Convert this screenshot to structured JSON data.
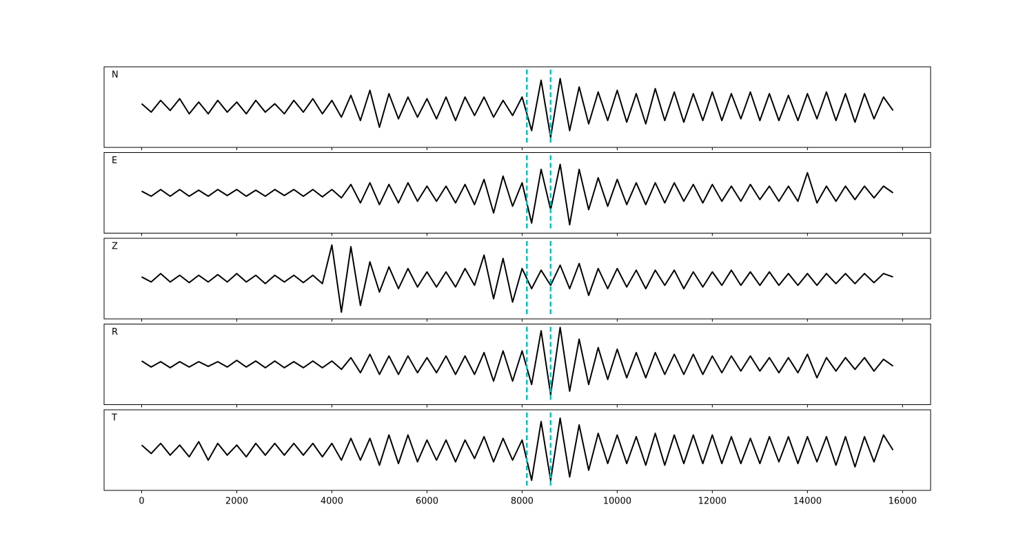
{
  "chart_data": {
    "type": "line",
    "x": [
      0,
      200,
      400,
      600,
      800,
      1000,
      1200,
      1400,
      1600,
      1800,
      2000,
      2200,
      2400,
      2600,
      2800,
      3000,
      3200,
      3400,
      3600,
      3800,
      4000,
      4200,
      4400,
      4600,
      4800,
      5000,
      5200,
      5400,
      5600,
      5800,
      6000,
      6200,
      6400,
      6600,
      6800,
      7000,
      7200,
      7400,
      7600,
      7800,
      8000,
      8200,
      8400,
      8600,
      8800,
      9000,
      9200,
      9400,
      9600,
      9800,
      10000,
      10200,
      10400,
      10600,
      10800,
      11000,
      11200,
      11400,
      11600,
      11800,
      12000,
      12200,
      12400,
      12600,
      12800,
      13000,
      13200,
      13400,
      13600,
      13800,
      14000,
      14200,
      14400,
      14600,
      14800,
      15000,
      15200,
      15400,
      15600,
      15800
    ],
    "xlim": [
      -790,
      16590
    ],
    "xticks": [
      0,
      2000,
      4000,
      6000,
      8000,
      10000,
      12000,
      14000,
      16000
    ],
    "ylim": [
      -1.2,
      1.2
    ],
    "vlines": [
      8100,
      8600
    ],
    "vline_color": "#00bfbf",
    "series": [
      {
        "name": "N",
        "color": "#000000",
        "values": [
          0.1,
          -0.15,
          0.2,
          -0.1,
          0.25,
          -0.2,
          0.15,
          -0.2,
          0.2,
          -0.15,
          0.15,
          -0.2,
          0.2,
          -0.15,
          0.1,
          -0.2,
          0.2,
          -0.15,
          0.25,
          -0.2,
          0.2,
          -0.3,
          0.35,
          -0.4,
          0.5,
          -0.6,
          0.4,
          -0.35,
          0.3,
          -0.3,
          0.25,
          -0.35,
          0.3,
          -0.4,
          0.3,
          -0.25,
          0.3,
          -0.3,
          0.2,
          -0.25,
          0.3,
          -0.7,
          0.8,
          -0.9,
          0.85,
          -0.7,
          0.6,
          -0.5,
          0.45,
          -0.4,
          0.5,
          -0.45,
          0.4,
          -0.5,
          0.55,
          -0.4,
          0.45,
          -0.45,
          0.4,
          -0.4,
          0.45,
          -0.4,
          0.4,
          -0.35,
          0.45,
          -0.4,
          0.4,
          -0.4,
          0.35,
          -0.4,
          0.4,
          -0.35,
          0.45,
          -0.4,
          0.4,
          -0.45,
          0.4,
          -0.35,
          0.3,
          -0.1
        ]
      },
      {
        "name": "E",
        "color": "#000000",
        "values": [
          0.05,
          -0.1,
          0.1,
          -0.1,
          0.1,
          -0.1,
          0.08,
          -0.1,
          0.1,
          -0.08,
          0.1,
          -0.1,
          0.08,
          -0.1,
          0.1,
          -0.08,
          0.1,
          -0.1,
          0.1,
          -0.12,
          0.1,
          -0.15,
          0.25,
          -0.3,
          0.3,
          -0.35,
          0.25,
          -0.3,
          0.3,
          -0.25,
          0.2,
          -0.25,
          0.2,
          -0.3,
          0.25,
          -0.35,
          0.4,
          -0.6,
          0.5,
          -0.4,
          0.3,
          -0.9,
          0.7,
          -0.5,
          0.85,
          -0.95,
          0.7,
          -0.5,
          0.45,
          -0.4,
          0.4,
          -0.35,
          0.3,
          -0.35,
          0.3,
          -0.3,
          0.3,
          -0.25,
          0.25,
          -0.3,
          0.25,
          -0.25,
          0.2,
          -0.25,
          0.25,
          -0.2,
          0.2,
          -0.25,
          0.2,
          -0.25,
          0.6,
          -0.3,
          0.2,
          -0.25,
          0.2,
          -0.2,
          0.2,
          -0.15,
          0.2,
          0.0
        ]
      },
      {
        "name": "Z",
        "color": "#000000",
        "values": [
          0.05,
          -0.1,
          0.15,
          -0.1,
          0.1,
          -0.12,
          0.1,
          -0.1,
          0.12,
          -0.1,
          0.15,
          -0.1,
          0.1,
          -0.15,
          0.1,
          -0.1,
          0.1,
          -0.12,
          0.1,
          -0.15,
          1.0,
          -1.0,
          0.95,
          -0.8,
          0.5,
          -0.4,
          0.35,
          -0.3,
          0.3,
          -0.25,
          0.2,
          -0.25,
          0.2,
          -0.25,
          0.3,
          -0.2,
          0.7,
          -0.6,
          0.6,
          -0.7,
          0.3,
          -0.3,
          0.25,
          -0.2,
          0.4,
          -0.3,
          0.45,
          -0.5,
          0.3,
          -0.3,
          0.3,
          -0.25,
          0.25,
          -0.3,
          0.25,
          -0.2,
          0.25,
          -0.3,
          0.2,
          -0.25,
          0.2,
          -0.2,
          0.25,
          -0.2,
          0.2,
          -0.2,
          0.2,
          -0.2,
          0.15,
          -0.2,
          0.15,
          -0.2,
          0.15,
          -0.15,
          0.15,
          -0.15,
          0.15,
          -0.12,
          0.15,
          0.05
        ]
      },
      {
        "name": "R",
        "color": "#000000",
        "values": [
          0.1,
          -0.08,
          0.08,
          -0.1,
          0.08,
          -0.08,
          0.08,
          -0.06,
          0.08,
          -0.08,
          0.12,
          -0.08,
          0.1,
          -0.1,
          0.1,
          -0.1,
          0.08,
          -0.1,
          0.1,
          -0.1,
          0.1,
          -0.15,
          0.2,
          -0.25,
          0.3,
          -0.3,
          0.25,
          -0.3,
          0.25,
          -0.25,
          0.2,
          -0.25,
          0.25,
          -0.3,
          0.25,
          -0.3,
          0.35,
          -0.5,
          0.4,
          -0.5,
          0.4,
          -0.6,
          1.0,
          -0.9,
          1.1,
          -0.8,
          0.75,
          -0.6,
          0.5,
          -0.45,
          0.45,
          -0.4,
          0.35,
          -0.4,
          0.35,
          -0.3,
          0.3,
          -0.3,
          0.3,
          -0.3,
          0.25,
          -0.25,
          0.25,
          -0.2,
          0.25,
          -0.2,
          0.2,
          -0.25,
          0.2,
          -0.25,
          0.3,
          -0.4,
          0.2,
          -0.2,
          0.2,
          -0.15,
          0.2,
          -0.2,
          0.15,
          -0.05
        ]
      },
      {
        "name": "T",
        "color": "#000000",
        "values": [
          0.15,
          -0.1,
          0.2,
          -0.15,
          0.15,
          -0.2,
          0.25,
          -0.3,
          0.2,
          -0.15,
          0.15,
          -0.2,
          0.2,
          -0.15,
          0.2,
          -0.15,
          0.2,
          -0.15,
          0.2,
          -0.2,
          0.2,
          -0.3,
          0.35,
          -0.3,
          0.35,
          -0.45,
          0.45,
          -0.4,
          0.45,
          -0.35,
          0.3,
          -0.3,
          0.3,
          -0.35,
          0.3,
          -0.25,
          0.4,
          -0.35,
          0.35,
          -0.3,
          0.3,
          -0.9,
          0.85,
          -0.9,
          0.95,
          -0.8,
          0.75,
          -0.6,
          0.5,
          -0.4,
          0.45,
          -0.4,
          0.4,
          -0.45,
          0.5,
          -0.45,
          0.45,
          -0.4,
          0.45,
          -0.4,
          0.45,
          -0.4,
          0.4,
          -0.4,
          0.35,
          -0.4,
          0.4,
          -0.35,
          0.4,
          -0.4,
          0.4,
          -0.35,
          0.4,
          -0.45,
          0.4,
          -0.5,
          0.4,
          -0.35,
          0.45,
          0.0
        ]
      }
    ]
  }
}
